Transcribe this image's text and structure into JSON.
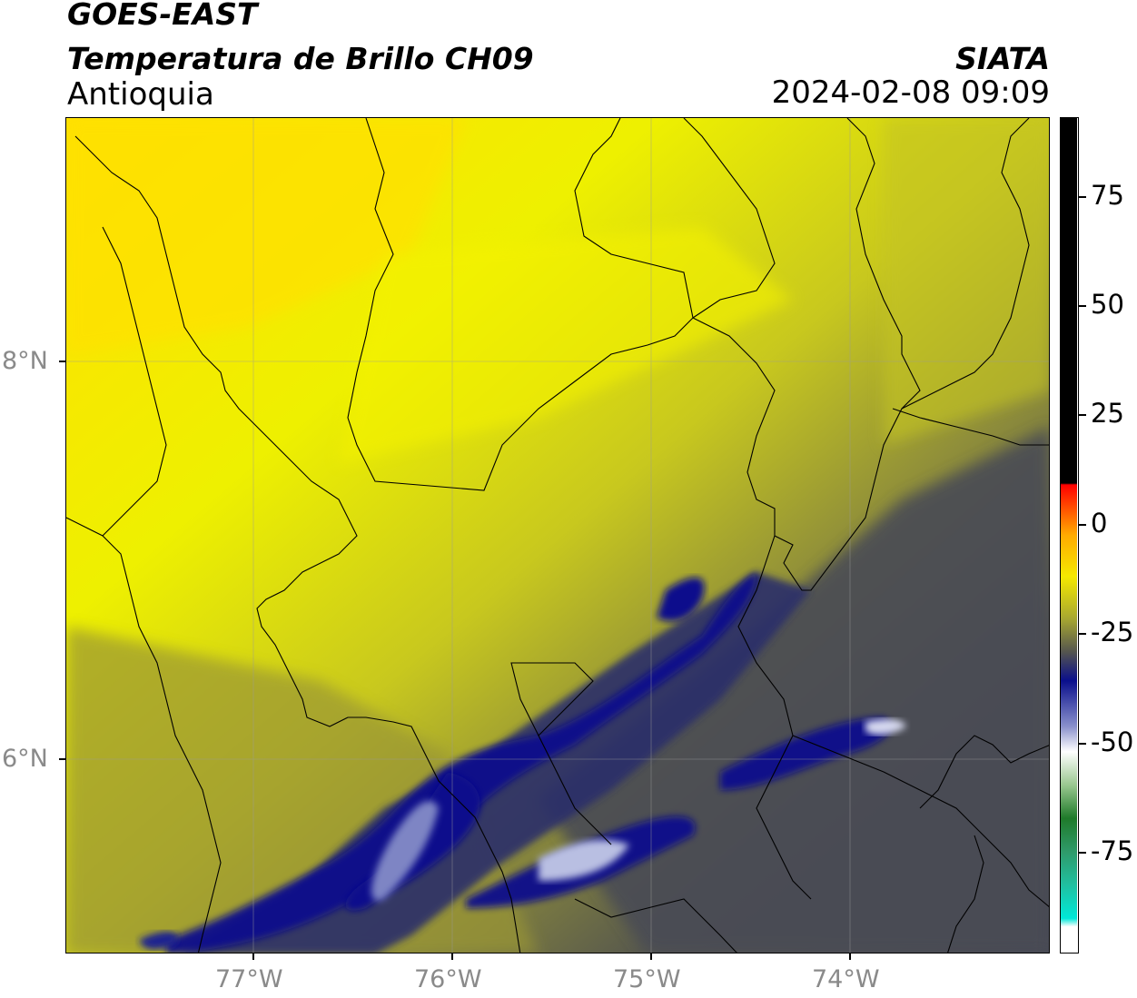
{
  "header": {
    "satellite": "GOES-EAST",
    "product": "Temperatura de Brillo CH09",
    "region": "Antioquia",
    "organization": "SIATA",
    "datetime": "2024-02-08 09:09"
  },
  "map": {
    "lon_range": [
      -77.95,
      -73.0
    ],
    "lat_range": [
      4.95,
      9.15
    ],
    "lon_ticks": [
      "77°W",
      "76°W",
      "75°W",
      "74°W"
    ],
    "lat_ticks": [
      "8°N",
      "6°N"
    ],
    "gridlines": true,
    "colors": {
      "warm_yellow": "#f5f200",
      "olive": "#8a8a3a",
      "gray": "#4a4c52",
      "deep_blue": "#0a0f8c",
      "light_blue": "#c8cde6",
      "border": "#000000"
    }
  },
  "colorbar": {
    "range": [
      -95,
      92
    ],
    "tick_labels": [
      "75",
      "50",
      "25",
      "0",
      "-25",
      "-50",
      "-75"
    ],
    "tick_values": [
      75,
      50,
      25,
      0,
      -25,
      -50,
      -75
    ]
  }
}
